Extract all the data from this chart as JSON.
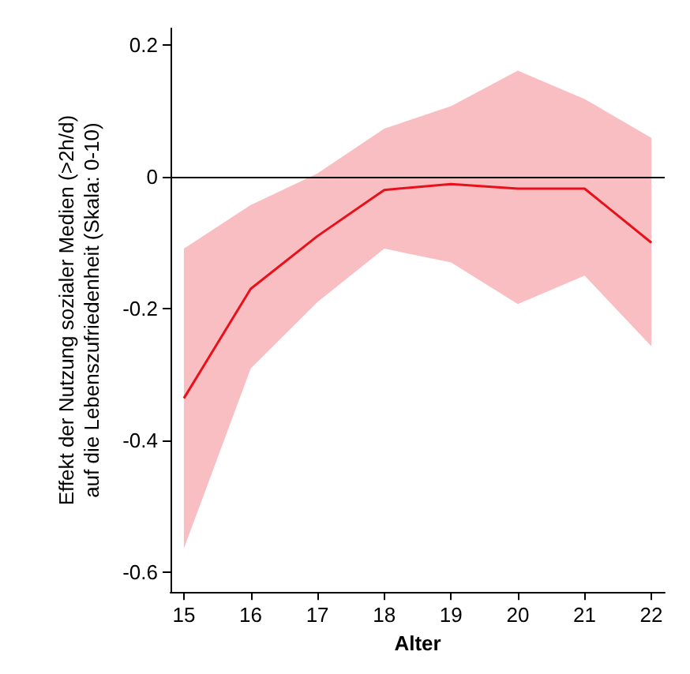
{
  "chart_data": {
    "type": "line",
    "xlabel": "Alter",
    "ylabel": "Effekt der Nutzung sozialer Medien (>2h/d)\nauf die Lebenszufriedenheit (Skala: 0-10)",
    "x": [
      15,
      16,
      17,
      18,
      19,
      20,
      21,
      22
    ],
    "series": [
      {
        "color": "#e8101a",
        "values": [
          -0.336,
          -0.17,
          -0.09,
          -0.02,
          -0.011,
          -0.018,
          -0.018,
          -0.1
        ],
        "lower": [
          -0.564,
          -0.291,
          -0.19,
          -0.109,
          -0.13,
          -0.193,
          -0.15,
          -0.257
        ],
        "upper": [
          -0.109,
          -0.043,
          0.005,
          0.073,
          0.107,
          0.161,
          0.118,
          0.059
        ]
      }
    ],
    "xlim": [
      14.8,
      22.2
    ],
    "xticks": [
      15,
      16,
      17,
      18,
      19,
      20,
      21,
      22
    ],
    "ylim": [
      -0.63,
      0.225
    ],
    "yticks": [
      -0.6,
      -0.4,
      -0.2,
      0,
      0.2
    ],
    "ref_lines": [
      {
        "axis": "y",
        "value": 0,
        "color": "#000000"
      }
    ],
    "grid": false,
    "marker": "none",
    "line_style": "solid"
  }
}
